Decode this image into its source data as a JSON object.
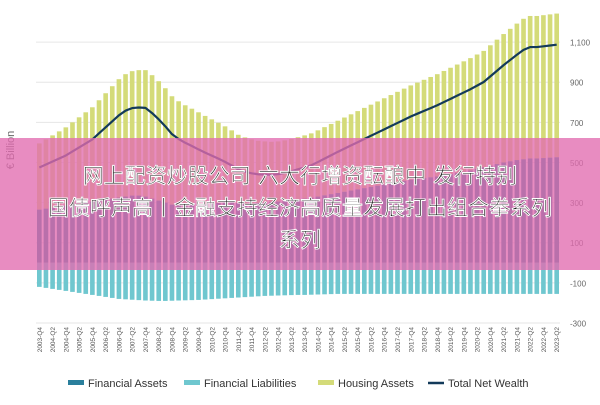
{
  "headline": {
    "line1": "网上配资炒股公司 六大行增资酝酿中 发行特别",
    "line2": "国债呼声高丨金融支持经济高质量发展打出组合拳系列",
    "line3": "系列"
  },
  "colors": {
    "financial_assets": "#2a7f9c",
    "financial_liabilities": "#6fc7cf",
    "housing_assets": "#d4db79",
    "total_net_wealth": "#133a5a",
    "band": "#e26bb0"
  },
  "chart_data": {
    "type": "bar",
    "title": "",
    "ylabel": "€ Billion",
    "xlabel": "",
    "ylim": [
      -300,
      1200
    ],
    "yticks": [
      1100,
      900,
      700,
      500,
      300,
      100,
      -100,
      -300
    ],
    "ytick_labels": [
      "1,100",
      "900",
      "700",
      "500",
      "300",
      "100",
      "-100",
      "-300"
    ],
    "xtick_labels": [
      "2003-Q4",
      "2004-Q2",
      "2004-Q4",
      "2005-Q2",
      "2005-Q4",
      "2006-Q2",
      "2006-Q4",
      "2007-Q2",
      "2007-Q4",
      "2008-Q2",
      "2008-Q4",
      "2009-Q2",
      "2009-Q4",
      "2010-Q2",
      "2010-Q4",
      "2011-Q2",
      "2011-Q4",
      "2012-Q2",
      "2012-Q4",
      "2013-Q2",
      "2013-Q4",
      "2014-Q2",
      "2014-Q4",
      "2015-Q2",
      "2015-Q4",
      "2016-Q2",
      "2016-Q4",
      "2017-Q2",
      "2017-Q4",
      "2018-Q2",
      "2018-Q4",
      "2019-Q2",
      "2019-Q4",
      "2020-Q2",
      "2020-Q4",
      "2021-Q2",
      "2021-Q4",
      "2022-Q2",
      "2022-Q4",
      "2023-Q2"
    ],
    "categories": [
      "2003-Q4",
      "2004-Q1",
      "2004-Q2",
      "2004-Q3",
      "2004-Q4",
      "2005-Q1",
      "2005-Q2",
      "2005-Q3",
      "2005-Q4",
      "2006-Q1",
      "2006-Q2",
      "2006-Q3",
      "2006-Q4",
      "2007-Q1",
      "2007-Q2",
      "2007-Q3",
      "2007-Q4",
      "2008-Q1",
      "2008-Q2",
      "2008-Q3",
      "2008-Q4",
      "2009-Q1",
      "2009-Q2",
      "2009-Q3",
      "2009-Q4",
      "2010-Q1",
      "2010-Q2",
      "2010-Q3",
      "2010-Q4",
      "2011-Q1",
      "2011-Q2",
      "2011-Q3",
      "2011-Q4",
      "2012-Q1",
      "2012-Q2",
      "2012-Q3",
      "2012-Q4",
      "2013-Q1",
      "2013-Q2",
      "2013-Q3",
      "2013-Q4",
      "2014-Q1",
      "2014-Q2",
      "2014-Q3",
      "2014-Q4",
      "2015-Q1",
      "2015-Q2",
      "2015-Q3",
      "2015-Q4",
      "2016-Q1",
      "2016-Q2",
      "2016-Q3",
      "2016-Q4",
      "2017-Q1",
      "2017-Q2",
      "2017-Q3",
      "2017-Q4",
      "2018-Q1",
      "2018-Q2",
      "2018-Q3",
      "2018-Q4",
      "2019-Q1",
      "2019-Q2",
      "2019-Q3",
      "2019-Q4",
      "2020-Q1",
      "2020-Q2",
      "2020-Q3",
      "2020-Q4",
      "2021-Q1",
      "2021-Q2",
      "2021-Q3",
      "2021-Q4",
      "2022-Q1",
      "2022-Q2",
      "2022-Q3",
      "2022-Q4",
      "2023-Q1",
      "2023-Q2"
    ],
    "series": [
      {
        "name": "Financial Assets",
        "values": [
          265,
          270,
          275,
          280,
          285,
          290,
          295,
          300,
          305,
          310,
          315,
          320,
          325,
          330,
          335,
          335,
          330,
          320,
          310,
          300,
          290,
          285,
          285,
          288,
          290,
          292,
          295,
          298,
          300,
          300,
          298,
          295,
          295,
          298,
          300,
          303,
          305,
          308,
          312,
          316,
          320,
          325,
          330,
          336,
          342,
          348,
          354,
          360,
          366,
          372,
          378,
          384,
          390,
          396,
          402,
          408,
          414,
          418,
          422,
          426,
          430,
          436,
          442,
          448,
          454,
          460,
          468,
          476,
          484,
          492,
          500,
          506,
          512,
          516,
          520,
          520,
          522,
          524,
          526
        ]
      },
      {
        "name": "Financial Liabilities",
        "values": [
          -120,
          -125,
          -130,
          -135,
          -140,
          -145,
          -150,
          -155,
          -160,
          -165,
          -170,
          -175,
          -180,
          -182,
          -184,
          -186,
          -188,
          -189,
          -190,
          -190,
          -189,
          -188,
          -187,
          -186,
          -185,
          -183,
          -181,
          -179,
          -177,
          -175,
          -173,
          -171,
          -169,
          -167,
          -165,
          -164,
          -163,
          -162,
          -161,
          -160,
          -160,
          -159,
          -158,
          -157,
          -156,
          -155,
          -155,
          -155,
          -155,
          -155,
          -155,
          -155,
          -155,
          -155,
          -155,
          -155,
          -155,
          -155,
          -155,
          -155,
          -155,
          -155,
          -155,
          -155,
          -155,
          -155,
          -155,
          -155,
          -155,
          -155,
          -155,
          -155,
          -155,
          -155,
          -155,
          -155,
          -155,
          -155,
          -155
        ]
      },
      {
        "name": "Housing Assets",
        "values": [
          330,
          345,
          360,
          375,
          390,
          410,
          430,
          450,
          470,
          500,
          530,
          560,
          590,
          610,
          620,
          625,
          630,
          615,
          595,
          570,
          540,
          520,
          500,
          480,
          460,
          440,
          420,
          400,
          380,
          360,
          340,
          330,
          320,
          310,
          305,
          300,
          300,
          302,
          305,
          310,
          315,
          320,
          330,
          340,
          350,
          360,
          370,
          380,
          390,
          400,
          410,
          420,
          430,
          440,
          450,
          460,
          470,
          480,
          490,
          500,
          510,
          520,
          530,
          540,
          550,
          560,
          570,
          580,
          600,
          620,
          640,
          660,
          680,
          700,
          710,
          710,
          712,
          714,
          716
        ]
      },
      {
        "name": "Total Net Wealth",
        "values": [
          475,
          490,
          505,
          520,
          535,
          555,
          575,
          595,
          615,
          645,
          675,
          705,
          735,
          758,
          771,
          774,
          772,
          746,
          715,
          680,
          641,
          617,
          598,
          582,
          565,
          549,
          534,
          519,
          503,
          485,
          465,
          454,
          446,
          441,
          440,
          439,
          442,
          448,
          456,
          466,
          475,
          486,
          502,
          519,
          536,
          553,
          569,
          585,
          601,
          617,
          633,
          649,
          665,
          681,
          697,
          713,
          729,
          743,
          757,
          771,
          785,
          801,
          817,
          833,
          849,
          865,
          883,
          901,
          929,
          957,
          985,
          1011,
          1037,
          1061,
          1075,
          1075,
          1079,
          1083,
          1087
        ]
      }
    ],
    "legend": [
      "Financial Assets",
      "Financial Liabilities",
      "Housing Assets",
      "Total Net Wealth"
    ],
    "legend_position": "bottom"
  }
}
